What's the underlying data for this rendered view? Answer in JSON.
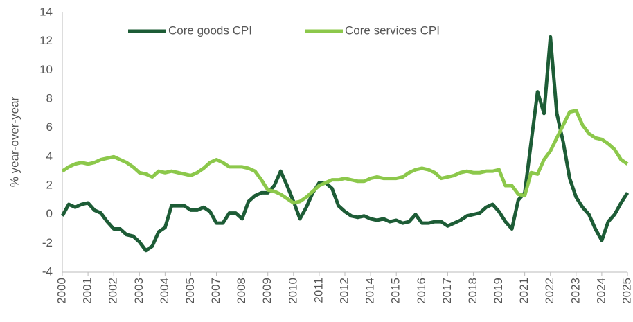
{
  "chart_data": {
    "type": "line",
    "y_label": "% year-over-year",
    "categories": [
      "2000",
      null,
      null,
      null,
      "2001",
      null,
      null,
      null,
      "2002",
      null,
      null,
      null,
      "2003",
      null,
      null,
      null,
      "2004",
      null,
      null,
      null,
      "2005",
      null,
      null,
      null,
      "2007",
      null,
      null,
      null,
      "2008",
      null,
      null,
      null,
      "2009",
      null,
      null,
      null,
      "2010",
      null,
      null,
      null,
      "2011",
      null,
      null,
      null,
      "2012",
      null,
      null,
      null,
      "2014",
      null,
      null,
      null,
      "2015",
      null,
      null,
      null,
      "2016",
      null,
      null,
      null,
      "2017",
      null,
      null,
      null,
      "2018",
      null,
      null,
      null,
      "2019",
      null,
      null,
      null,
      "2021",
      null,
      null,
      null,
      "2022",
      null,
      null,
      null,
      "2023",
      null,
      null,
      null,
      "2024",
      null,
      null,
      null,
      "2025"
    ],
    "series": [
      {
        "name": "Core goods CPI",
        "color": "#1d5c36",
        "values": [
          -0.1,
          0.7,
          0.5,
          0.7,
          0.8,
          0.3,
          0.1,
          -0.5,
          -1.0,
          -1.0,
          -1.4,
          -1.5,
          -1.9,
          -2.5,
          -2.2,
          -1.2,
          -0.9,
          0.6,
          0.6,
          0.6,
          0.3,
          0.3,
          0.5,
          0.2,
          -0.6,
          -0.6,
          0.1,
          0.1,
          -0.3,
          0.9,
          1.3,
          1.5,
          1.5,
          2.0,
          3.0,
          2.0,
          0.9,
          -0.3,
          0.5,
          1.5,
          2.2,
          2.2,
          1.8,
          0.6,
          0.2,
          -0.1,
          -0.2,
          -0.1,
          -0.3,
          -0.4,
          -0.3,
          -0.5,
          -0.4,
          -0.6,
          -0.5,
          0.0,
          -0.6,
          -0.6,
          -0.5,
          -0.5,
          -0.8,
          -0.6,
          -0.4,
          -0.1,
          0.0,
          0.1,
          0.5,
          0.7,
          0.2,
          -0.5,
          -1.0,
          1.0,
          1.5,
          5.0,
          8.5,
          7.0,
          12.3,
          7.0,
          5.0,
          2.5,
          1.2,
          0.5,
          0.0,
          -1.0,
          -1.8,
          -0.5,
          0.0,
          0.8,
          1.5
        ]
      },
      {
        "name": "Core services CPI",
        "color": "#8cc84b",
        "values": [
          3.0,
          3.3,
          3.5,
          3.6,
          3.5,
          3.6,
          3.8,
          3.9,
          4.0,
          3.8,
          3.6,
          3.3,
          2.9,
          2.8,
          2.6,
          3.0,
          2.9,
          3.0,
          2.9,
          2.8,
          2.7,
          2.9,
          3.2,
          3.6,
          3.8,
          3.6,
          3.3,
          3.3,
          3.3,
          3.2,
          3.0,
          2.4,
          1.7,
          1.6,
          1.4,
          1.1,
          0.8,
          0.9,
          1.2,
          1.6,
          2.0,
          2.2,
          2.4,
          2.4,
          2.5,
          2.4,
          2.3,
          2.3,
          2.5,
          2.6,
          2.5,
          2.5,
          2.5,
          2.6,
          2.9,
          3.1,
          3.2,
          3.1,
          2.9,
          2.5,
          2.6,
          2.7,
          2.9,
          3.0,
          2.9,
          2.9,
          3.0,
          3.0,
          3.1,
          2.0,
          2.0,
          1.4,
          1.3,
          2.9,
          2.8,
          3.8,
          4.4,
          5.3,
          6.2,
          7.1,
          7.2,
          6.2,
          5.6,
          5.3,
          5.2,
          4.9,
          4.5,
          3.8,
          3.5
        ]
      }
    ],
    "ylim": [
      -4,
      14
    ],
    "yticks": [
      -4,
      -2,
      0,
      2,
      4,
      6,
      8,
      10,
      12,
      14
    ],
    "grid": false,
    "legend": "top"
  }
}
